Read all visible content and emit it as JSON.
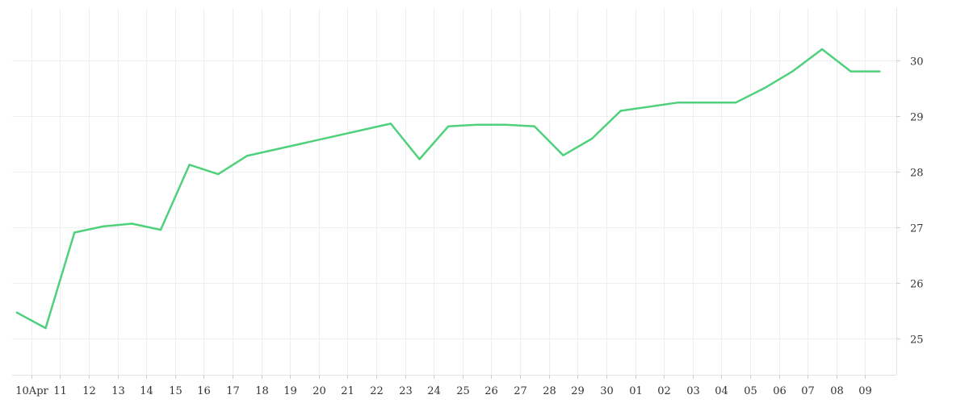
{
  "chart_data": {
    "type": "line",
    "title": "",
    "xlabel": "",
    "ylabel": "",
    "ylim": [
      24.35,
      30.95
    ],
    "grid": true,
    "legend": "none",
    "y_axis_side": "right",
    "y_ticks": [
      25,
      26,
      27,
      28,
      29,
      30
    ],
    "x_ticks": [
      {
        "date": "2024-04-10",
        "label": "10Apr"
      },
      {
        "date": "2024-04-11",
        "label": "11"
      },
      {
        "date": "2024-04-12",
        "label": "12"
      },
      {
        "date": "2024-04-13",
        "label": "13"
      },
      {
        "date": "2024-04-14",
        "label": "14"
      },
      {
        "date": "2024-04-15",
        "label": "15"
      },
      {
        "date": "2024-04-16",
        "label": "16"
      },
      {
        "date": "2024-04-17",
        "label": "17"
      },
      {
        "date": "2024-04-18",
        "label": "18"
      },
      {
        "date": "2024-04-19",
        "label": "19"
      },
      {
        "date": "2024-04-20",
        "label": "20"
      },
      {
        "date": "2024-04-21",
        "label": "21"
      },
      {
        "date": "2024-04-22",
        "label": "22"
      },
      {
        "date": "2024-04-23",
        "label": "23"
      },
      {
        "date": "2024-04-24",
        "label": "24"
      },
      {
        "date": "2024-04-25",
        "label": "25"
      },
      {
        "date": "2024-04-26",
        "label": "26"
      },
      {
        "date": "2024-04-27",
        "label": "27"
      },
      {
        "date": "2024-04-28",
        "label": "28"
      },
      {
        "date": "2024-04-29",
        "label": "29"
      },
      {
        "date": "2024-04-30",
        "label": "30"
      },
      {
        "date": "2024-05-01",
        "label": "01"
      },
      {
        "date": "2024-05-02",
        "label": "02"
      },
      {
        "date": "2024-05-03",
        "label": "03"
      },
      {
        "date": "2024-05-04",
        "label": "04"
      },
      {
        "date": "2024-05-05",
        "label": "05"
      },
      {
        "date": "2024-05-06",
        "label": "06"
      },
      {
        "date": "2024-05-07",
        "label": "07"
      },
      {
        "date": "2024-05-08",
        "label": "08"
      },
      {
        "date": "2024-05-09",
        "label": "09"
      }
    ],
    "x_range": [
      "2024-04-09T08:00",
      "2024-05-10T02:00"
    ],
    "series": [
      {
        "name": "",
        "color": "#4fd17c",
        "points": [
          {
            "x": "2024-04-09T12:00",
            "y": 25.47
          },
          {
            "x": "2024-04-10T12:00",
            "y": 25.19
          },
          {
            "x": "2024-04-11T12:00",
            "y": 26.91
          },
          {
            "x": "2024-04-12T12:00",
            "y": 27.02
          },
          {
            "x": "2024-04-13T12:00",
            "y": 27.07
          },
          {
            "x": "2024-04-14T12:00",
            "y": 26.96
          },
          {
            "x": "2024-04-15T12:00",
            "y": 28.13
          },
          {
            "x": "2024-04-16T12:00",
            "y": 27.96
          },
          {
            "x": "2024-04-17T12:00",
            "y": 28.29
          },
          {
            "x": "2024-04-22T12:00",
            "y": 28.87
          },
          {
            "x": "2024-04-23T12:00",
            "y": 28.23
          },
          {
            "x": "2024-04-24T12:00",
            "y": 28.82
          },
          {
            "x": "2024-04-25T12:00",
            "y": 28.85
          },
          {
            "x": "2024-04-26T12:00",
            "y": 28.85
          },
          {
            "x": "2024-04-27T12:00",
            "y": 28.82
          },
          {
            "x": "2024-04-28T12:00",
            "y": 28.3
          },
          {
            "x": "2024-04-29T12:00",
            "y": 28.6
          },
          {
            "x": "2024-04-30T12:00",
            "y": 29.1
          },
          {
            "x": "2024-05-02T12:00",
            "y": 29.25
          },
          {
            "x": "2024-05-04T12:00",
            "y": 29.25
          },
          {
            "x": "2024-05-05T12:00",
            "y": 29.51
          },
          {
            "x": "2024-05-06T12:00",
            "y": 29.82
          },
          {
            "x": "2024-05-07T12:00",
            "y": 30.21
          },
          {
            "x": "2024-05-08T12:00",
            "y": 29.81
          },
          {
            "x": "2024-05-09T12:00",
            "y": 29.81
          }
        ]
      }
    ]
  }
}
